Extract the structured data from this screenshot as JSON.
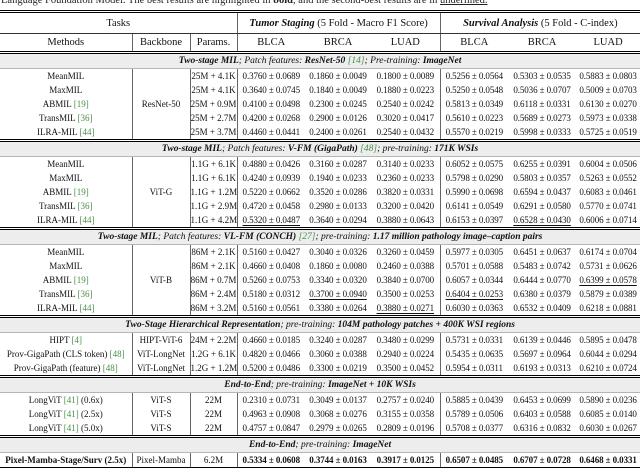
{
  "colors": {
    "citation_green": "#4a8f4a",
    "section_band_gray": "#ededed",
    "rule_black": "#000000"
  },
  "caption": {
    "pre": "Language Foundation Model. The best results are highlighted in ",
    "bold_word": "bold",
    "mid": ", and the second-best results are in ",
    "underlined_word": "underlined."
  },
  "header": {
    "tasks_label": "Tasks",
    "group1_bold": "Tumor Staging",
    "group1_rest": " (5 Fold - Macro F1 Score)",
    "group2_bold": "Survival Analysis",
    "group2_rest": " (5 Fold - C-index)",
    "col_labels": [
      "Methods",
      "Backbone",
      "Params.",
      "BLCA",
      "BRCA",
      "LUAD",
      "BLCA",
      "BRCA",
      "LUAD"
    ]
  },
  "sections": [
    {
      "title": [
        {
          "t": "Two-stage MIL",
          "b": true
        },
        {
          "t": "; "
        },
        {
          "t": "Patch features: "
        },
        {
          "t": "ResNet-50",
          "b": true
        },
        {
          "t": " "
        },
        {
          "t": "[14]",
          "c": true
        },
        {
          "t": "; "
        },
        {
          "t": "Pre-training: "
        },
        {
          "t": "ImageNet",
          "b": true
        }
      ],
      "backbone": "ResNet-50",
      "rows": [
        {
          "m": [
            "MeanMIL",
            "",
            ""
          ],
          "p": "25M + 4.1K",
          "c": [
            "0.3760 ± 0.0689",
            "0.1860 ± 0.0049",
            "0.1800 ± 0.0089",
            "0.5256 ± 0.0564",
            "0.5303 ± 0.0535",
            "0.5883 ± 0.0803"
          ],
          "u": []
        },
        {
          "m": [
            "MaxMIL",
            "",
            ""
          ],
          "p": "25M + 4.1K",
          "c": [
            "0.3640 ± 0.0745",
            "0.1840 ± 0.0049",
            "0.1880 ± 0.0223",
            "0.5250 ± 0.0548",
            "0.5036 ± 0.0707",
            "0.5009 ± 0.0703"
          ],
          "u": []
        },
        {
          "m": [
            "ABMIL ",
            "[19]",
            ""
          ],
          "p": "25M + 0.9M",
          "c": [
            "0.4100 ± 0.0498",
            "0.2300 ± 0.0245",
            "0.2540 ± 0.0242",
            "0.5813 ± 0.0349",
            "0.6118 ± 0.0331",
            "0.6130 ± 0.0270"
          ],
          "u": []
        },
        {
          "m": [
            "TransMIL ",
            "[36]",
            ""
          ],
          "p": "25M + 2.7M",
          "c": [
            "0.4200 ± 0.0268",
            "0.2900 ± 0.0126",
            "0.3020 ± 0.0417",
            "0.5610 ± 0.0223",
            "0.5689 ± 0.0273",
            "0.5973 ± 0.0338"
          ],
          "u": []
        },
        {
          "m": [
            "ILRA-MIL ",
            "[44]",
            ""
          ],
          "p": "25M + 3.7M",
          "c": [
            "0.4460 ± 0.0441",
            "0.2400 ± 0.0261",
            "0.2540 ± 0.0432",
            "0.5570 ± 0.0219",
            "0.5998 ± 0.0333",
            "0.5725 ± 0.0519"
          ],
          "u": []
        }
      ]
    },
    {
      "title": [
        {
          "t": "Two-stage MIL",
          "b": true
        },
        {
          "t": "; "
        },
        {
          "t": "Patch features: "
        },
        {
          "t": "V-FM (GigaPath)",
          "b": true
        },
        {
          "t": " "
        },
        {
          "t": "[48]",
          "c": true
        },
        {
          "t": "; "
        },
        {
          "t": "pre-training: "
        },
        {
          "t": "171K WSIs",
          "b": true
        }
      ],
      "backbone": "ViT-G",
      "rows": [
        {
          "m": [
            "MeanMIL",
            "",
            ""
          ],
          "p": "1.1G + 6.1K",
          "c": [
            "0.4880 ± 0.0426",
            "0.3160 ± 0.0287",
            "0.3140 ± 0.0233",
            "0.6052 ± 0.0575",
            "0.6255 ± 0.0391",
            "0.6004 ± 0.0506"
          ],
          "u": []
        },
        {
          "m": [
            "MaxMIL",
            "",
            ""
          ],
          "p": "1.1G + 6.1K",
          "c": [
            "0.4240 ± 0.0939",
            "0.1940 ± 0.0233",
            "0.2360 ± 0.0233",
            "0.5798 ± 0.0290",
            "0.5803 ± 0.0357",
            "0.5263 ± 0.0552"
          ],
          "u": []
        },
        {
          "m": [
            "ABMIL ",
            "[19]",
            ""
          ],
          "p": "1.1G + 1.2M",
          "c": [
            "0.5220 ± 0.0662",
            "0.3520 ± 0.0286",
            "0.3820 ± 0.0331",
            "0.5990 ± 0.0698",
            "0.6594 ± 0.0437",
            "0.6083 ± 0.0461"
          ],
          "u": []
        },
        {
          "m": [
            "TransMIL ",
            "[36]",
            ""
          ],
          "p": "1.1G + 2.9M",
          "c": [
            "0.4720 ± 0.0458",
            "0.2980 ± 0.0133",
            "0.3200 ± 0.0420",
            "0.6141 ± 0.0549",
            "0.6291 ± 0.0580",
            "0.5770 ± 0.0741"
          ],
          "u": []
        },
        {
          "m": [
            "ILRA-MIL ",
            "[44]",
            ""
          ],
          "p": "1.1G + 4.2M",
          "c": [
            "0.5320 ± 0.0487",
            "0.3640 ± 0.0294",
            "0.3880 ± 0.0643",
            "0.6153 ± 0.0397",
            "0.6528 ± 0.0430",
            "0.6006 ± 0.0714"
          ],
          "u": [
            0,
            4
          ]
        }
      ]
    },
    {
      "title": [
        {
          "t": "Two-stage MIL",
          "b": true
        },
        {
          "t": "; "
        },
        {
          "t": "Patch features: "
        },
        {
          "t": "VL-FM (CONCH)",
          "b": true
        },
        {
          "t": " "
        },
        {
          "t": "[27]",
          "c": true
        },
        {
          "t": "; "
        },
        {
          "t": "pre-training: "
        },
        {
          "t": "1.17 million pathology image–caption pairs",
          "b": true
        }
      ],
      "backbone": "ViT-B",
      "rows": [
        {
          "m": [
            "MeanMIL",
            "",
            ""
          ],
          "p": "86M + 2.1K",
          "c": [
            "0.5160 ± 0.0427",
            "0.3040 ± 0.0326",
            "0.3260 ± 0.0459",
            "0.5977 ± 0.0305",
            "0.6451 ± 0.0637",
            "0.6174 ± 0.0704"
          ],
          "u": []
        },
        {
          "m": [
            "MaxMIL",
            "",
            ""
          ],
          "p": "86M + 2.1K",
          "c": [
            "0.4660 ± 0.0408",
            "0.1860 ± 0.0080",
            "0.2460 ± 0.0388",
            "0.5701 ± 0.0588",
            "0.5483 ± 0.0742",
            "0.5731 ± 0.0626"
          ],
          "u": []
        },
        {
          "m": [
            "ABMIL ",
            "[19]",
            ""
          ],
          "p": "86M + 0.7M",
          "c": [
            "0.5260 ± 0.0753",
            "0.3340 ± 0.0320",
            "0.3840 ± 0.0700",
            "0.6057 ± 0.0344",
            "0.6444 ± 0.0770",
            "0.6399 ± 0.0578"
          ],
          "u": [
            5
          ]
        },
        {
          "m": [
            "TransMIL ",
            "[36]",
            ""
          ],
          "p": "86M + 2.4M",
          "c": [
            "0.5180 ± 0.0312",
            "0.3700 ± 0.0940",
            "0.3500 ± 0.0253",
            "0.6404 ± 0.0253",
            "0.6380 ± 0.0379",
            "0.5879 ± 0.0389"
          ],
          "u": [
            1,
            3
          ]
        },
        {
          "m": [
            "ILRA-MIL ",
            "[44]",
            ""
          ],
          "p": "86M + 3.2M",
          "c": [
            "0.5160 ± 0.0561",
            "0.3380 ± 0.0264",
            "0.3880 ± 0.0271",
            "0.6030 ± 0.0363",
            "0.6532 ± 0.0409",
            "0.6218 ± 0.0881"
          ],
          "u": [
            2
          ]
        }
      ]
    },
    {
      "title": [
        {
          "t": "Two-Stage Hierarchical Representation",
          "b": true
        },
        {
          "t": "; "
        },
        {
          "t": "pre-training: "
        },
        {
          "t": "104M pathology patches + 400K WSI regions",
          "b": true
        }
      ],
      "rows": [
        {
          "m": [
            "HIPT ",
            "[4]",
            ""
          ],
          "bb": "HIPT-ViT-6",
          "p": "24M + 2.2M",
          "c": [
            "0.4660 ± 0.0185",
            "0.3240 ± 0.0287",
            "0.3480 ± 0.0299",
            "0.5731 ± 0.0331",
            "0.6139 ± 0.0446",
            "0.5895 ± 0.0478"
          ],
          "u": []
        },
        {
          "m": [
            "Prov-GigaPath (CLS token) ",
            "[48]",
            ""
          ],
          "bb": "ViT-LongNet",
          "p": "1.2G + 6.1K",
          "c": [
            "0.4820 ± 0.0466",
            "0.3060 ± 0.0388",
            "0.2940 ± 0.0224",
            "0.5435 ± 0.0635",
            "0.5697 ± 0.0964",
            "0.6044 ± 0.0294"
          ],
          "u": []
        },
        {
          "m": [
            "Prov-GigaPath (feature) ",
            "[48]",
            ""
          ],
          "bb": "ViT-LongNet",
          "p": "1.2G + 1.2M",
          "c": [
            "0.5200 ± 0.0486",
            "0.3300 ± 0.0219",
            "0.3500 ± 0.0452",
            "0.5954 ± 0.0311",
            "0.6193 ± 0.0313",
            "0.6210 ± 0.0724"
          ],
          "u": []
        }
      ]
    },
    {
      "title": [
        {
          "t": "End-to-End",
          "b": true
        },
        {
          "t": "; "
        },
        {
          "t": "pre-training: "
        },
        {
          "t": "ImageNet + 10K WSIs",
          "b": true
        }
      ],
      "rows": [
        {
          "m": [
            "LongViT ",
            "[41]",
            " (0.6x)"
          ],
          "bb": "ViT-S",
          "p": "22M",
          "c": [
            "0.2310 ± 0.0731",
            "0.3049 ± 0.0137",
            "0.2757 ± 0.0240",
            "0.5885 ± 0.0439",
            "0.6453 ± 0.0699",
            "0.5890 ± 0.0236"
          ],
          "u": []
        },
        {
          "m": [
            "LongViT ",
            "[41]",
            " (2.5x)"
          ],
          "bb": "ViT-S",
          "p": "22M",
          "c": [
            "0.4963 ± 0.0908",
            "0.3068 ± 0.0276",
            "0.3155 ± 0.0358",
            "0.5789 ± 0.0506",
            "0.6403 ± 0.0588",
            "0.6085 ± 0.0140"
          ],
          "u": []
        },
        {
          "m": [
            "LongViT ",
            "[41]",
            " (5.0x)"
          ],
          "bb": "ViT-S",
          "p": "22M",
          "c": [
            "0.4757 ± 0.0847",
            "0.2979 ± 0.0265",
            "0.2809 ± 0.0196",
            "0.5708 ± 0.0377",
            "0.6316 ± 0.0832",
            "0.6030 ± 0.0267"
          ],
          "u": []
        }
      ]
    },
    {
      "title": [
        {
          "t": "End-to-End",
          "b": true
        },
        {
          "t": "; "
        },
        {
          "t": "pre-training: "
        },
        {
          "t": "ImageNet",
          "b": true
        }
      ],
      "rows": [
        {
          "m": [
            "Pixel-Mamba-Stage/Surv (2.5x)",
            "",
            ""
          ],
          "bb": "Pixel-Mamba",
          "p": "6.2M",
          "c": [
            "0.5334 ± 0.0608",
            "0.3744 ± 0.0163",
            "0.3917 ± 0.0125",
            "0.6507 ± 0.0485",
            "0.6707 ± 0.0728",
            "0.6468 ± 0.0331"
          ],
          "u": [],
          "bold": true
        }
      ]
    }
  ]
}
